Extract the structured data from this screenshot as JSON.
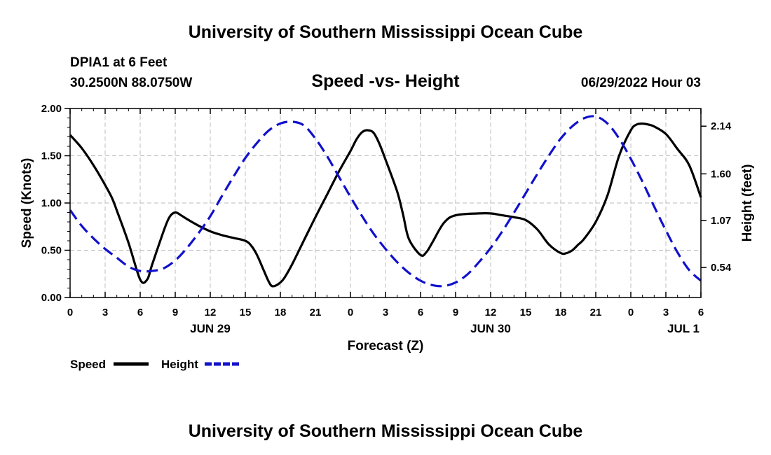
{
  "header": {
    "title": "University of Southern Mississippi Ocean Cube",
    "station": "DPIA1 at 6 Feet",
    "coords": "30.2500N  88.0750W",
    "datetime": "06/29/2022 Hour 03"
  },
  "footer": {
    "title": "University of Southern Mississippi Ocean Cube"
  },
  "chart_data": {
    "type": "line",
    "title": "Speed -vs- Height",
    "xlabel": "Forecast (Z)",
    "ylabel_left": "Speed (Knots)",
    "ylabel_right": "Height (feet)",
    "x_unit": "hours since 06/29 00Z",
    "xlim": [
      0,
      54
    ],
    "ylim_left": [
      0,
      2
    ],
    "ylim_right": [
      0.2,
      2.34
    ],
    "grid": true,
    "x_ticks": [
      0,
      3,
      6,
      9,
      12,
      15,
      18,
      21,
      24,
      27,
      30,
      33,
      36,
      39,
      42,
      45,
      48,
      51,
      54
    ],
    "x_tick_labels": [
      "0",
      "3",
      "6",
      "9",
      "12",
      "15",
      "18",
      "21",
      "0",
      "3",
      "6",
      "9",
      "12",
      "15",
      "18",
      "21",
      "0",
      "3",
      "6"
    ],
    "date_labels": [
      {
        "x": 12,
        "label": "JUN 29"
      },
      {
        "x": 36,
        "label": "JUN 30"
      },
      {
        "x": 52.5,
        "label": "JUL 1"
      }
    ],
    "y_left_ticks": [
      0,
      0.5,
      1,
      1.5,
      2
    ],
    "y_left_tick_labels": [
      "0.00",
      "0.50",
      "1.00",
      "1.50",
      "2.00"
    ],
    "y_right_ticks": [
      0.54,
      1.07,
      1.6,
      2.14
    ],
    "y_right_tick_labels": [
      "0.54",
      "1.07",
      "1.60",
      "2.14"
    ],
    "legend": [
      {
        "name": "Speed",
        "color": "#000000",
        "dash": "solid"
      },
      {
        "name": "Height",
        "color": "#1111cc",
        "dash": "dashed"
      }
    ],
    "series": [
      {
        "name": "Speed",
        "axis": "left",
        "color": "#000000",
        "x": [
          0,
          1,
          2,
          3,
          3.6,
          4,
          5,
          6,
          6.6,
          7,
          8,
          8.5,
          9,
          9.5,
          10,
          11,
          12,
          13,
          14,
          15,
          15.5,
          16,
          16.6,
          17,
          17.3,
          17.8,
          18.3,
          19,
          20,
          21,
          22,
          23,
          24,
          24.5,
          25,
          25.5,
          26,
          26.5,
          27,
          28,
          28.5,
          29,
          30,
          30.5,
          31,
          32,
          33,
          35,
          36,
          37,
          38,
          39,
          40,
          41,
          42,
          42.5,
          43,
          43.5,
          44,
          45,
          46,
          47,
          48,
          48.5,
          49,
          49.5,
          50,
          51,
          52,
          53,
          54
        ],
        "y": [
          1.72,
          1.58,
          1.4,
          1.19,
          1.05,
          0.92,
          0.58,
          0.19,
          0.19,
          0.34,
          0.7,
          0.85,
          0.9,
          0.87,
          0.83,
          0.76,
          0.7,
          0.66,
          0.63,
          0.6,
          0.55,
          0.45,
          0.28,
          0.17,
          0.12,
          0.14,
          0.2,
          0.35,
          0.6,
          0.85,
          1.09,
          1.33,
          1.55,
          1.67,
          1.75,
          1.77,
          1.74,
          1.62,
          1.46,
          1.12,
          0.88,
          0.62,
          0.45,
          0.48,
          0.58,
          0.79,
          0.87,
          0.89,
          0.89,
          0.87,
          0.85,
          0.82,
          0.72,
          0.56,
          0.47,
          0.47,
          0.5,
          0.56,
          0.62,
          0.8,
          1.08,
          1.5,
          1.77,
          1.83,
          1.84,
          1.83,
          1.81,
          1.73,
          1.57,
          1.4,
          1.06
        ]
      },
      {
        "name": "Height",
        "axis": "right",
        "color": "#1111cc",
        "x": [
          0,
          1,
          2,
          3,
          4,
          5,
          6,
          7,
          8,
          9,
          10,
          11,
          12,
          13,
          14,
          15,
          16,
          17,
          18,
          19,
          20,
          21,
          22,
          23,
          24,
          25,
          26,
          27,
          28,
          29,
          30,
          31,
          32,
          33,
          34,
          35,
          36,
          37,
          38,
          39,
          40,
          41,
          42,
          43,
          44,
          45,
          46,
          47,
          48,
          49,
          50,
          51,
          52,
          53,
          54
        ],
        "y": [
          1.19,
          1.01,
          0.87,
          0.75,
          0.65,
          0.55,
          0.5,
          0.5,
          0.53,
          0.62,
          0.76,
          0.93,
          1.12,
          1.35,
          1.57,
          1.78,
          1.95,
          2.09,
          2.17,
          2.19,
          2.15,
          2.0,
          1.8,
          1.57,
          1.34,
          1.12,
          0.92,
          0.75,
          0.6,
          0.48,
          0.39,
          0.34,
          0.33,
          0.37,
          0.46,
          0.6,
          0.76,
          0.95,
          1.16,
          1.38,
          1.6,
          1.81,
          2.0,
          2.14,
          2.23,
          2.25,
          2.17,
          2.0,
          1.77,
          1.51,
          1.23,
          0.96,
          0.71,
          0.51,
          0.39
        ]
      }
    ]
  }
}
